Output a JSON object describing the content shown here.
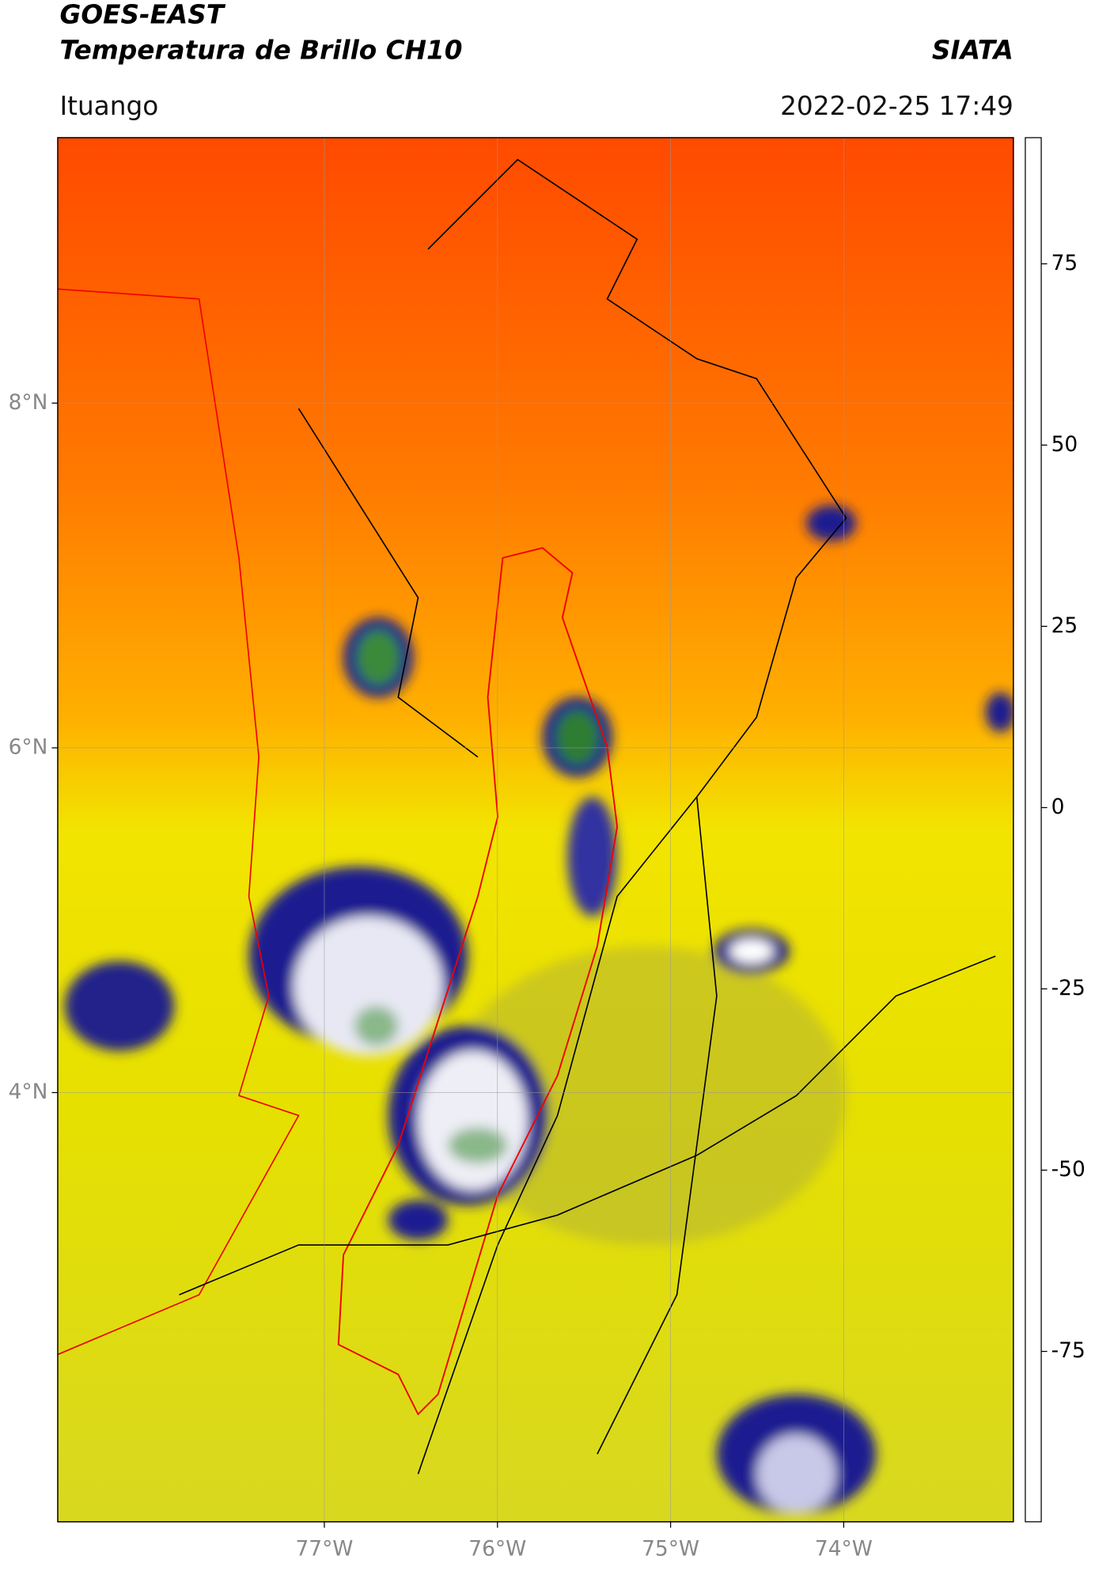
{
  "chart_data": {
    "type": "map",
    "title": "GOES-EAST",
    "subtitle": "Temperatura de Brillo CH10",
    "brand": "SIATA",
    "location": "Ituango",
    "datetime": "2022-02-25 17:49",
    "xlim": [
      -78.54,
      -73.02
    ],
    "ylim": [
      1.51,
      9.54
    ],
    "xticks": [
      {
        "value": -77,
        "label": "77°W"
      },
      {
        "value": -76,
        "label": "76°W"
      },
      {
        "value": -75,
        "label": "75°W"
      },
      {
        "value": -74,
        "label": "74°W"
      }
    ],
    "yticks": [
      {
        "value": 4,
        "label": "4°N"
      },
      {
        "value": 6,
        "label": "6°N"
      },
      {
        "value": 8,
        "label": "8°N"
      }
    ],
    "grid": true,
    "clim": [
      -98.5,
      92.4
    ],
    "cticks": [
      -75,
      -50,
      -25,
      0,
      25,
      50,
      75
    ],
    "colormap": [
      {
        "value": -98.5,
        "color": "#ffffff"
      },
      {
        "value": -93.5,
        "color": "#ffffff"
      },
      {
        "value": -93,
        "color": "#00e5e5"
      },
      {
        "value": -82,
        "color": "#1fa890"
      },
      {
        "value": -68,
        "color": "#2e7d32"
      },
      {
        "value": -60,
        "color": "#9cc79c"
      },
      {
        "value": -50,
        "color": "#ffffff"
      },
      {
        "value": -40,
        "color": "#8a8fd0"
      },
      {
        "value": -28,
        "color": "#0a0a80"
      },
      {
        "value": -22,
        "color": "#707050"
      },
      {
        "value": -12,
        "color": "#ffff00"
      },
      {
        "value": 0,
        "color": "#ff9a00"
      },
      {
        "value": 8,
        "color": "#ff0000"
      },
      {
        "value": 8.5,
        "color": "#000000"
      },
      {
        "value": 92.4,
        "color": "#000000"
      }
    ]
  }
}
